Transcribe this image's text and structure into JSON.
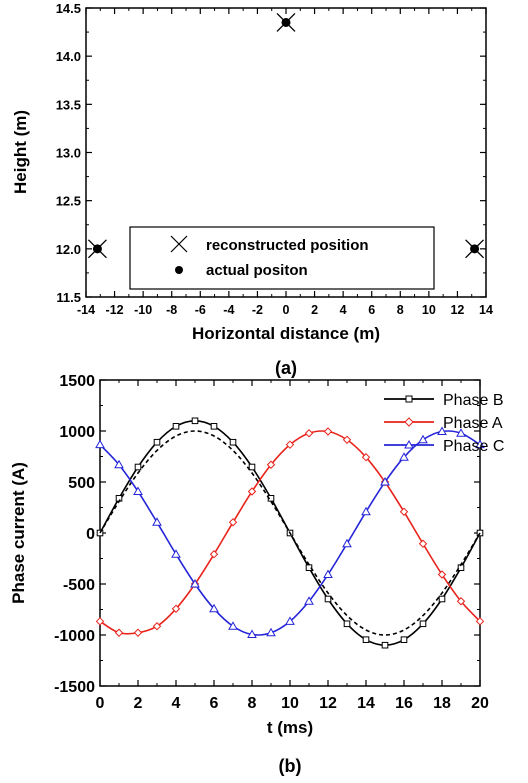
{
  "chart_data": [
    {
      "type": "scatter",
      "caption": "(a)",
      "xlabel": "Horizontal distance (m)",
      "ylabel": "Height (m)",
      "xlim": [
        -14,
        14
      ],
      "ylim": [
        11.5,
        14.5
      ],
      "xticks": [
        "-14",
        "-12",
        "-10",
        "-8",
        "-6",
        "-4",
        "-2",
        "0",
        "2",
        "4",
        "6",
        "8",
        "10",
        "12",
        "14"
      ],
      "yticks": [
        "11.5",
        "12.0",
        "12.5",
        "13.0",
        "13.5",
        "14.0",
        "14.5"
      ],
      "legend_position": "bottom-center",
      "series": [
        {
          "name": "reconstructed position",
          "marker": "x",
          "color": "#000000",
          "points": [
            {
              "x": -13.2,
              "y": 12.0
            },
            {
              "x": 0,
              "y": 14.35
            },
            {
              "x": 13.2,
              "y": 12.0
            }
          ]
        },
        {
          "name": "actual positon",
          "marker": "dot",
          "color": "#000000",
          "points": [
            {
              "x": -13.2,
              "y": 12.0
            },
            {
              "x": 0,
              "y": 14.35
            },
            {
              "x": 13.2,
              "y": 12.0
            }
          ]
        }
      ]
    },
    {
      "type": "line",
      "caption": "(b)",
      "xlabel": "t (ms)",
      "ylabel": "Phase current (A)",
      "xlim": [
        0,
        20
      ],
      "ylim": [
        -1500,
        1500
      ],
      "xticks": [
        "0",
        "2",
        "4",
        "6",
        "8",
        "10",
        "12",
        "14",
        "16",
        "18",
        "20"
      ],
      "yticks": [
        "-1500",
        "-1000",
        "-500",
        "0",
        "500",
        "1000",
        "1500"
      ],
      "legend_position": "top-right",
      "x": [
        0,
        1,
        2,
        3,
        4,
        5,
        6,
        7,
        8,
        9,
        10,
        11,
        12,
        13,
        14,
        15,
        16,
        17,
        18,
        19,
        20
      ],
      "series": [
        {
          "name": "Phase B",
          "color": "#000000",
          "marker": "square",
          "values": [
            0,
            340,
            647,
            890,
            1046,
            1100,
            1046,
            890,
            647,
            340,
            0,
            -340,
            -647,
            -890,
            -1046,
            -1100,
            -1046,
            -890,
            -647,
            -340,
            0
          ]
        },
        {
          "name": "Phase B (dashed)",
          "color": "#000000",
          "marker": "none",
          "values": [
            0,
            309,
            588,
            809,
            951,
            1000,
            951,
            809,
            588,
            309,
            0,
            -309,
            -588,
            -809,
            -951,
            -1000,
            -951,
            -809,
            -588,
            -309,
            0
          ]
        },
        {
          "name": "Phase A",
          "color": "#e8231c",
          "marker": "diamond",
          "values": [
            -866,
            -978,
            -978,
            -914,
            -743,
            -500,
            -208,
            105,
            407,
            669,
            866,
            978,
            995,
            914,
            743,
            500,
            208,
            -105,
            -407,
            -669,
            -866
          ]
        },
        {
          "name": "Phase C",
          "color": "#2424d8",
          "marker": "triangle",
          "values": [
            866,
            669,
            407,
            105,
            -208,
            -500,
            -743,
            -914,
            -995,
            -978,
            -866,
            -669,
            -407,
            -105,
            208,
            500,
            743,
            914,
            995,
            978,
            866
          ]
        }
      ]
    }
  ]
}
